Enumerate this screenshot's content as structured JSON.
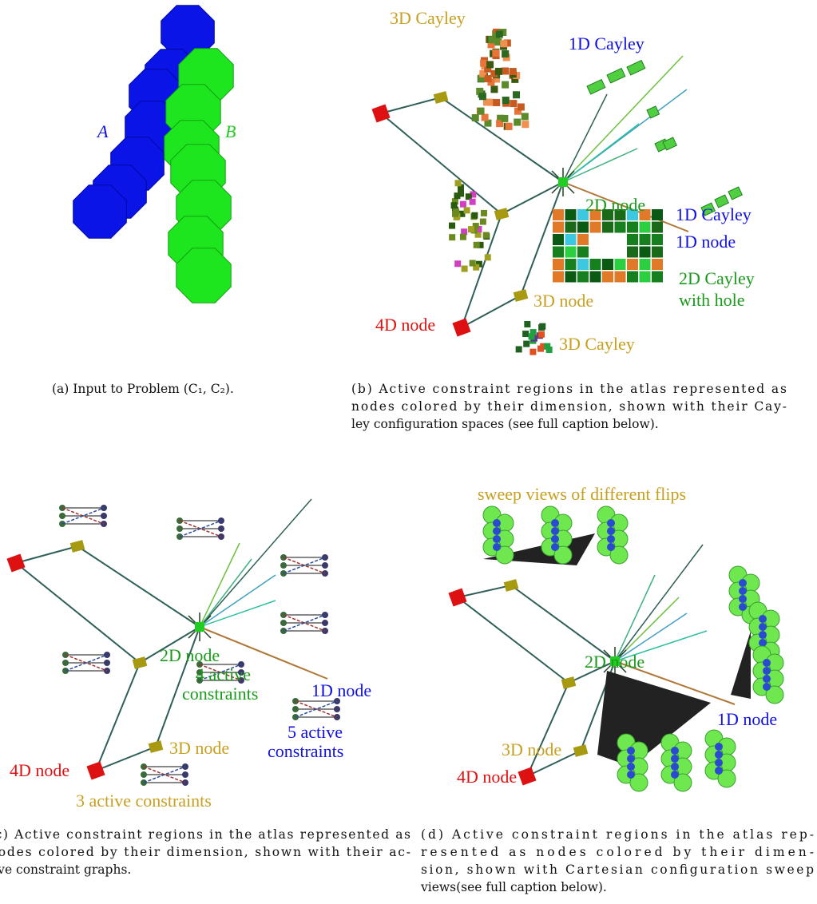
{
  "panel_a": {
    "labels": [
      "A",
      "B"
    ],
    "caption": [
      "(a) Input to Problem (C₁, C₂)."
    ]
  },
  "panel_b": {
    "labels": [
      [
        "3D Cayley"
      ],
      [
        "1D Cayley"
      ],
      [
        "2D node"
      ],
      [
        "1D Cayley"
      ],
      [
        "1D node"
      ],
      [
        "2D Cayley",
        "with hole"
      ],
      [
        "4D node"
      ],
      [
        "3D node"
      ],
      [
        "3D Cayley"
      ]
    ],
    "caption": [
      "(b) Active constraint regions in the atlas represented as",
      "nodes colored by their dimension, shown with their Cay-",
      "ley configuration spaces (see full caption below)."
    ]
  },
  "panel_c": {
    "labels": [
      [
        "2D node"
      ],
      [
        "4 active",
        "constraints"
      ],
      [
        "1D node"
      ],
      [
        "5 active",
        "constraints"
      ],
      [
        "3D node"
      ],
      [
        "4D node"
      ],
      [
        "3 active constraints"
      ]
    ],
    "caption": [
      "(c) Active constraint regions in the atlas represented as",
      "nodes colored by their dimension, shown with their ac-",
      "tive constraint graphs."
    ]
  },
  "panel_d": {
    "labels": [
      [
        "sweep views of different flips"
      ],
      [
        "2D node"
      ],
      [
        "1D node"
      ],
      [
        "3D node"
      ],
      [
        "4D node"
      ]
    ],
    "caption": [
      "(d) Active constraint regions in the atlas rep-",
      "resented as nodes colored by their dimen-",
      "sion, shown with Cartesian configuration sweep",
      "views(see full caption below)."
    ]
  }
}
